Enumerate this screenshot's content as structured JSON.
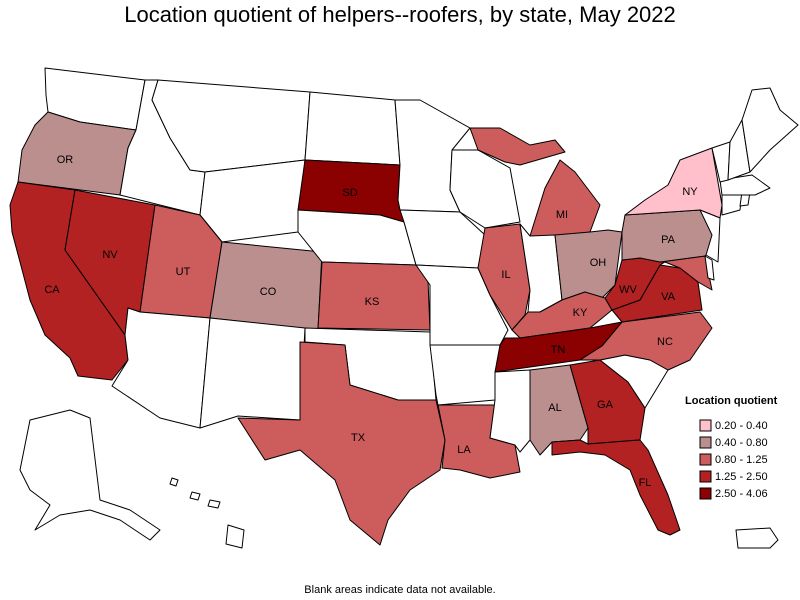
{
  "title": "Location quotient of helpers--roofers, by state, May 2022",
  "footnote": "Blank areas indicate data not available.",
  "colors": {
    "band1": "#ffc0cb",
    "band2": "#bc8f8f",
    "band3": "#cd5c5c",
    "band4": "#b22222",
    "band5": "#8b0000",
    "blank": "#ffffff",
    "stroke": "#000000"
  },
  "legend": {
    "title": "Location quotient",
    "items": [
      {
        "label": "0.20 - 0.40",
        "color": "#ffc0cb"
      },
      {
        "label": "0.40 - 0.80",
        "color": "#bc8f8f"
      },
      {
        "label": "0.80 - 1.25",
        "color": "#cd5c5c"
      },
      {
        "label": "1.25 - 2.50",
        "color": "#b22222"
      },
      {
        "label": "2.50 - 4.06",
        "color": "#8b0000"
      }
    ]
  },
  "states": {
    "WA": {
      "band": 0
    },
    "OR": {
      "band": 2,
      "label": "OR"
    },
    "CA": {
      "band": 4,
      "label": "CA"
    },
    "NV": {
      "band": 4,
      "label": "NV"
    },
    "ID": {
      "band": 0
    },
    "MT": {
      "band": 0
    },
    "WY": {
      "band": 0
    },
    "UT": {
      "band": 3,
      "label": "UT"
    },
    "CO": {
      "band": 2,
      "label": "CO"
    },
    "AZ": {
      "band": 0
    },
    "NM": {
      "band": 0
    },
    "ND": {
      "band": 0
    },
    "SD": {
      "band": 5,
      "label": "SD"
    },
    "NE": {
      "band": 0
    },
    "KS": {
      "band": 3,
      "label": "KS"
    },
    "OK": {
      "band": 0
    },
    "TX": {
      "band": 3,
      "label": "TX"
    },
    "MN": {
      "band": 0
    },
    "IA": {
      "band": 0
    },
    "MO": {
      "band": 0
    },
    "AR": {
      "band": 0
    },
    "LA": {
      "band": 3,
      "label": "LA"
    },
    "WI": {
      "band": 0
    },
    "IL": {
      "band": 3,
      "label": "IL"
    },
    "MI": {
      "band": 3,
      "label": "MI"
    },
    "IN": {
      "band": 0
    },
    "OH": {
      "band": 2,
      "label": "OH"
    },
    "KY": {
      "band": 3,
      "label": "KY"
    },
    "TN": {
      "band": 5,
      "label": "TN"
    },
    "MS": {
      "band": 0
    },
    "AL": {
      "band": 2,
      "label": "AL"
    },
    "GA": {
      "band": 4,
      "label": "GA"
    },
    "FL": {
      "band": 4,
      "label": "FL"
    },
    "SC": {
      "band": 0
    },
    "NC": {
      "band": 3,
      "label": "NC"
    },
    "VA": {
      "band": 4,
      "label": "VA"
    },
    "WV": {
      "band": 4,
      "label": "WV"
    },
    "PA": {
      "band": 2,
      "label": "PA"
    },
    "NY": {
      "band": 1,
      "label": "NY"
    },
    "NJ": {
      "band": 0
    },
    "DE": {
      "band": 0
    },
    "MD": {
      "band": 3
    },
    "CT": {
      "band": 0
    },
    "RI": {
      "band": 0
    },
    "MA": {
      "band": 0
    },
    "VT": {
      "band": 0
    },
    "NH": {
      "band": 0
    },
    "ME": {
      "band": 0
    },
    "AK": {
      "band": 0
    },
    "HI": {
      "band": 0
    },
    "PR": {
      "band": 0
    }
  }
}
